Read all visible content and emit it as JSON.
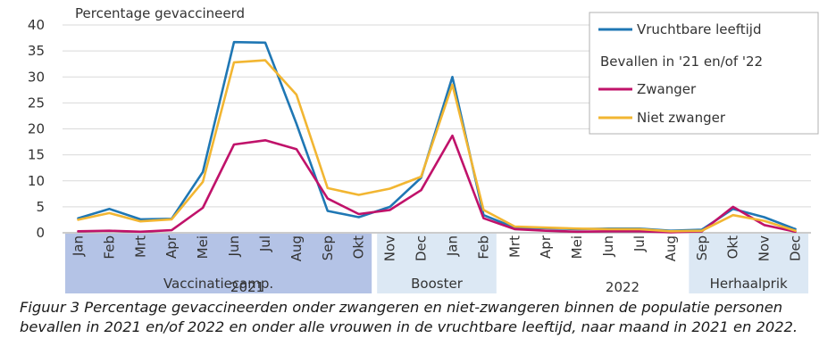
{
  "chart_data": {
    "type": "line",
    "ylabel": "Percentage gevaccineerd",
    "ylim": [
      0,
      40
    ],
    "yticks": [
      0,
      5,
      10,
      15,
      20,
      25,
      30,
      35,
      40
    ],
    "grid": "horizontal",
    "legend_position": "top-right",
    "categories": [
      "Jan",
      "Feb",
      "Mrt",
      "Apr",
      "Mei",
      "Jun",
      "Jul",
      "Aug",
      "Sep",
      "Okt",
      "Nov",
      "Dec",
      "Jan",
      "Feb",
      "Mrt",
      "Apr",
      "Mei",
      "Jun",
      "Jul",
      "Aug",
      "Sep",
      "Okt",
      "Nov",
      "Dec"
    ],
    "years": [
      {
        "label": "2021",
        "start": 0,
        "end": 11
      },
      {
        "label": "2022",
        "start": 12,
        "end": 23
      }
    ],
    "periods": [
      {
        "label": "Vaccinatiecamp.",
        "start": 0,
        "end": 9,
        "color": "#b4c3e6"
      },
      {
        "label": "Booster",
        "start": 10,
        "end": 13,
        "color": "#dce8f4"
      },
      {
        "label": "Herhaalprik",
        "start": 20,
        "end": 23,
        "color": "#dce8f4"
      }
    ],
    "legend_heading": "Bevallen in '21 en/of '22",
    "series": [
      {
        "name": "Vruchtbare leeftijd",
        "color": "#1f77b4",
        "values": [
          2.8,
          4.6,
          2.6,
          2.7,
          11.7,
          36.7,
          36.6,
          21.0,
          4.2,
          3.0,
          5.0,
          10.6,
          30.0,
          3.4,
          1.0,
          0.9,
          0.7,
          0.8,
          0.8,
          0.4,
          0.6,
          4.6,
          3.0,
          0.7
        ]
      },
      {
        "name": "Zwanger",
        "color": "#c0126a",
        "values": [
          0.3,
          0.4,
          0.2,
          0.5,
          4.8,
          17.0,
          17.8,
          16.1,
          6.6,
          3.6,
          4.4,
          8.2,
          18.7,
          2.8,
          0.7,
          0.4,
          0.2,
          0.3,
          0.3,
          0.1,
          0.3,
          5.0,
          1.5,
          0.2
        ]
      },
      {
        "name": "Niet zwanger",
        "color": "#f2b632",
        "values": [
          2.5,
          3.8,
          2.2,
          2.6,
          9.8,
          32.8,
          33.2,
          26.6,
          8.6,
          7.3,
          8.5,
          10.8,
          28.5,
          4.4,
          1.2,
          1.0,
          0.8,
          0.7,
          0.7,
          0.3,
          0.4,
          3.4,
          2.3,
          0.4
        ]
      }
    ]
  },
  "caption": "Figuur 3 Percentage gevaccineerden onder zwangeren en niet-zwangeren binnen de populatie personen bevallen in 2021 en/of 2022 en onder alle vrouwen in de vruchtbare leeftijd, naar maand in 2021 en 2022."
}
